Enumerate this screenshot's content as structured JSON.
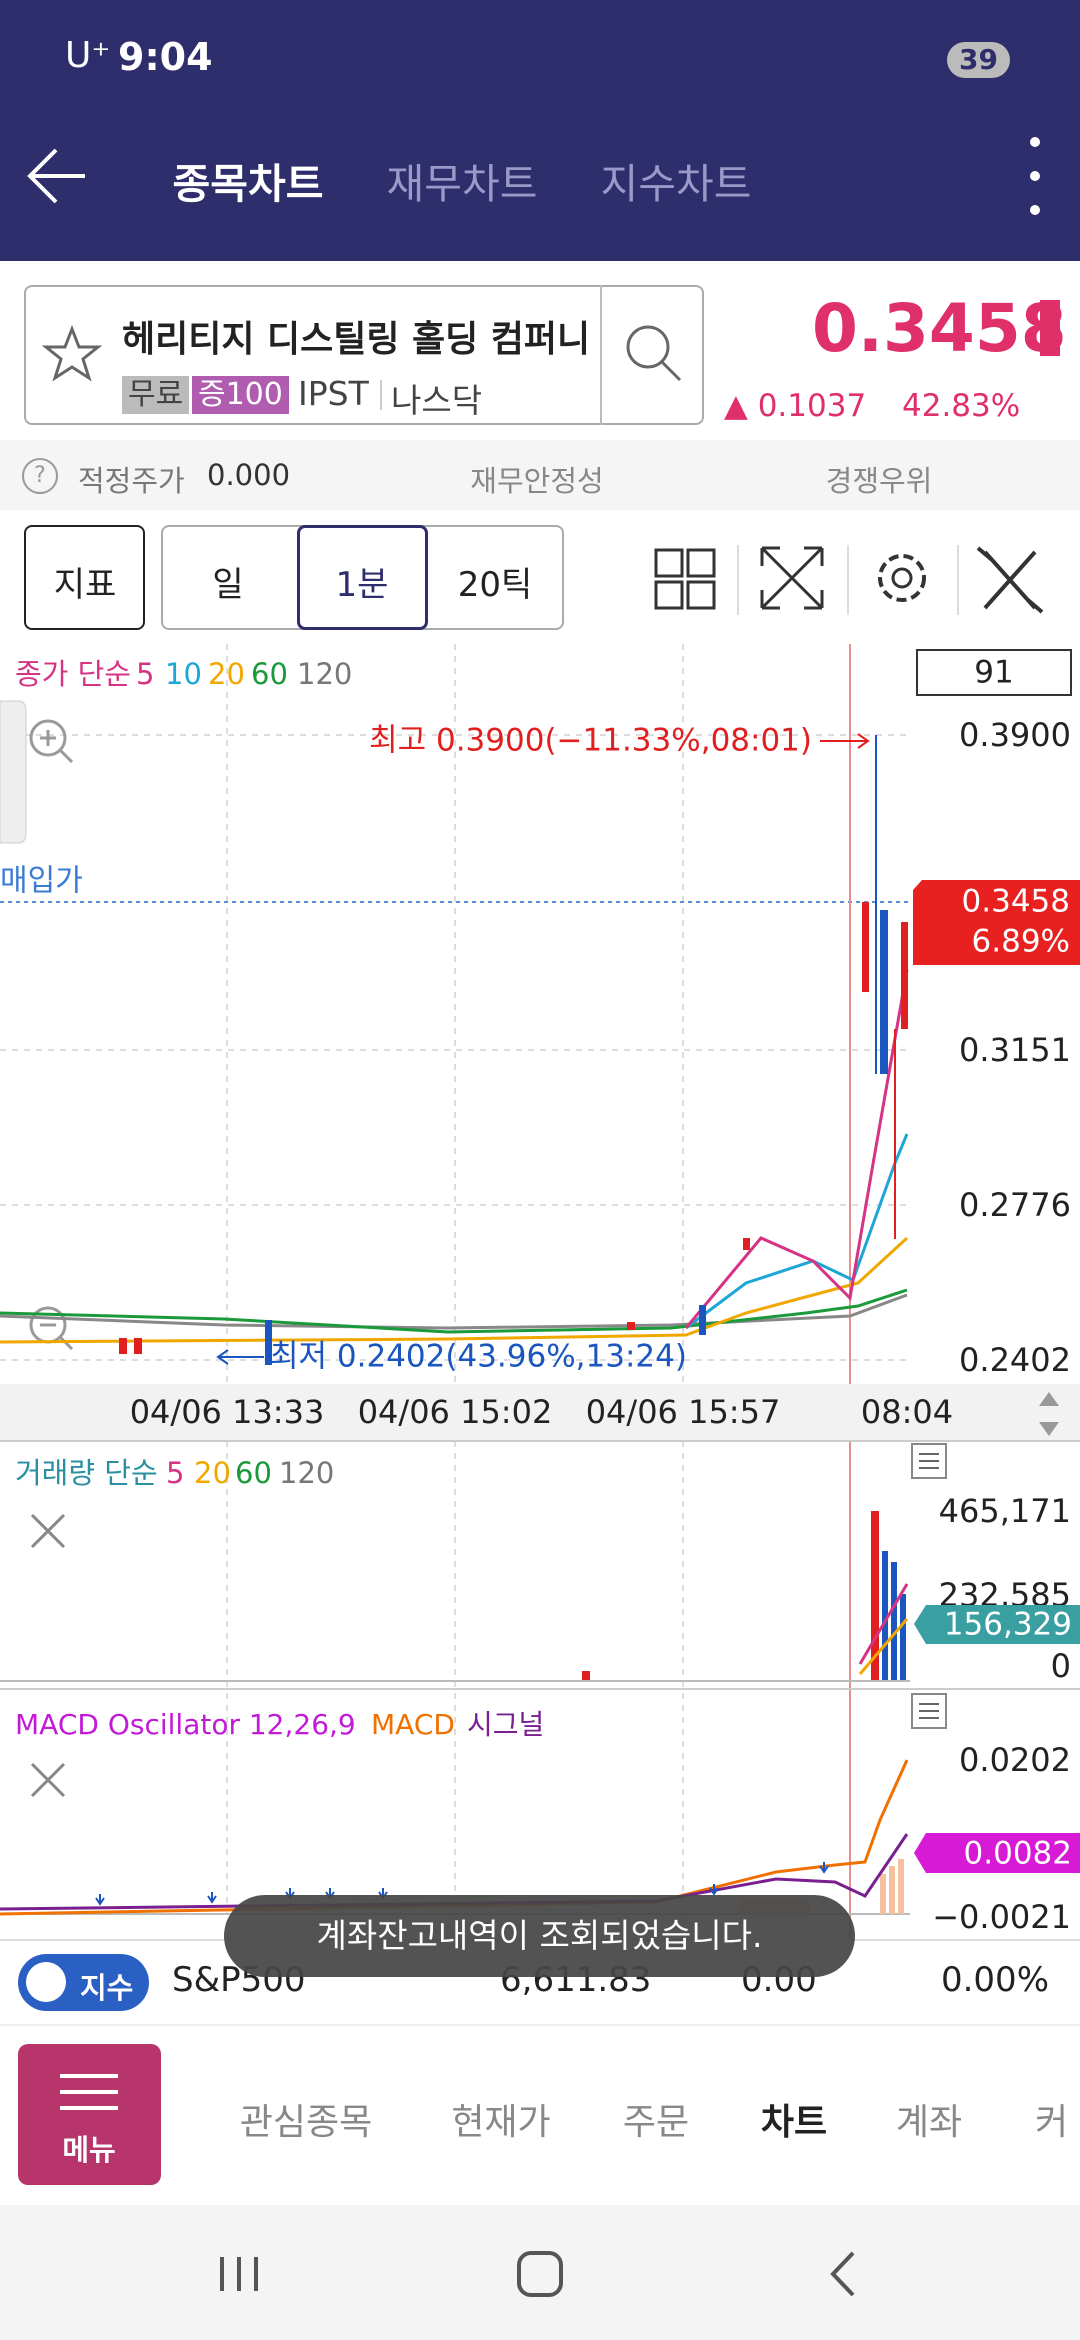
{
  "status_bar": {
    "carrier": "U⁺",
    "time": "9:04",
    "battery": "39"
  },
  "header": {
    "tabs": [
      "종목차트",
      "재무차트",
      "지수차트"
    ]
  },
  "stock": {
    "name": "헤리티지 디스틸링 홀딩 컴퍼니",
    "tags": [
      "무료",
      "증100"
    ],
    "ticker": "IPST",
    "market": "나스닥",
    "price": "0.3458",
    "change": "▲ 0.1037",
    "change_rate": "42.83%"
  },
  "info_row": {
    "help": "?",
    "fair_price_label": "적정주가",
    "fair_price": "0.000",
    "items": [
      "재무안정성",
      "경쟁우위"
    ]
  },
  "toolbar": {
    "buttons": [
      "지표",
      "일",
      "1분",
      "20틱"
    ]
  },
  "price_chart": {
    "legend": [
      "종가 단순",
      "5",
      "10",
      "20",
      "60",
      "120"
    ],
    "count": "91",
    "high_note": "최고 0.3900(−11.33%,08:01)",
    "low_note": "최저 0.2402(43.96%,13:24)",
    "purchase_label": "매입가",
    "axis_labels": [
      "0.3900",
      "0.3151",
      "0.2776",
      "0.2402"
    ],
    "current_price": "0.3458",
    "current_rate": "6.89%",
    "dates": [
      "04/06 13:33",
      "04/06 15:02",
      "04/06 15:57",
      "08:04"
    ]
  },
  "volume_chart": {
    "legend": [
      "거래량 단순",
      "5",
      "20",
      "60",
      "120"
    ],
    "axis_labels": [
      "465,171",
      "232,585",
      "0"
    ],
    "current": "156,329"
  },
  "macd_chart": {
    "legend": [
      "MACD Oscillator 12,26,9",
      "MACD",
      "시그널"
    ],
    "axis_labels": [
      "0.0202",
      "−0.0021"
    ],
    "current": "0.0082"
  },
  "index_bar": {
    "badge": "지수",
    "name": "S&P500",
    "value": "6,611.83",
    "change": "0.00",
    "rate": "0.00%"
  },
  "toast": "계좌잔고내역이 조회되었습니다.",
  "menu_button": "메뉴",
  "bottom_nav": [
    "관심종목",
    "현재가",
    "주문",
    "차트",
    "계좌",
    "커"
  ]
}
